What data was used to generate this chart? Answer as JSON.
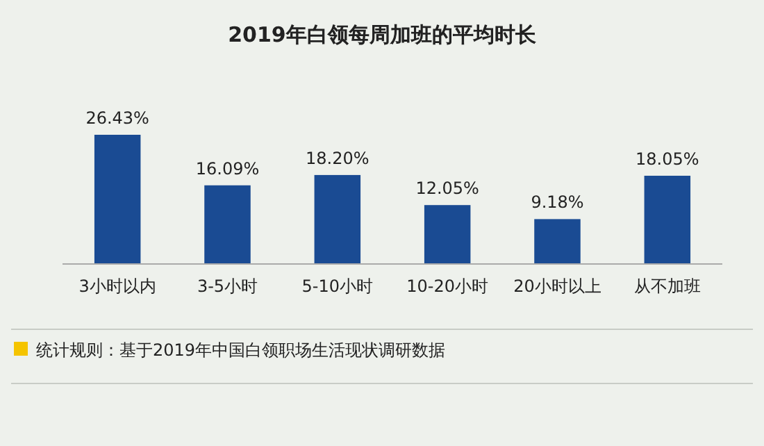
{
  "chart_data": {
    "type": "bar",
    "title": "2019年白领每周加班的平均时长",
    "categories": [
      "3小时以内",
      "3-5小时",
      "5-10小时",
      "10-20小时",
      "20小时以上",
      "从不加班"
    ],
    "values": [
      26.43,
      16.09,
      18.2,
      12.05,
      9.18,
      18.05
    ],
    "value_labels": [
      "26.43%",
      "16.09%",
      "18.20%",
      "12.05%",
      "9.18%",
      "18.05%"
    ],
    "color": "#1a4b93",
    "annotations": [
      "统计规则：基于2019年中国白领职场生活现状调研数据"
    ]
  }
}
